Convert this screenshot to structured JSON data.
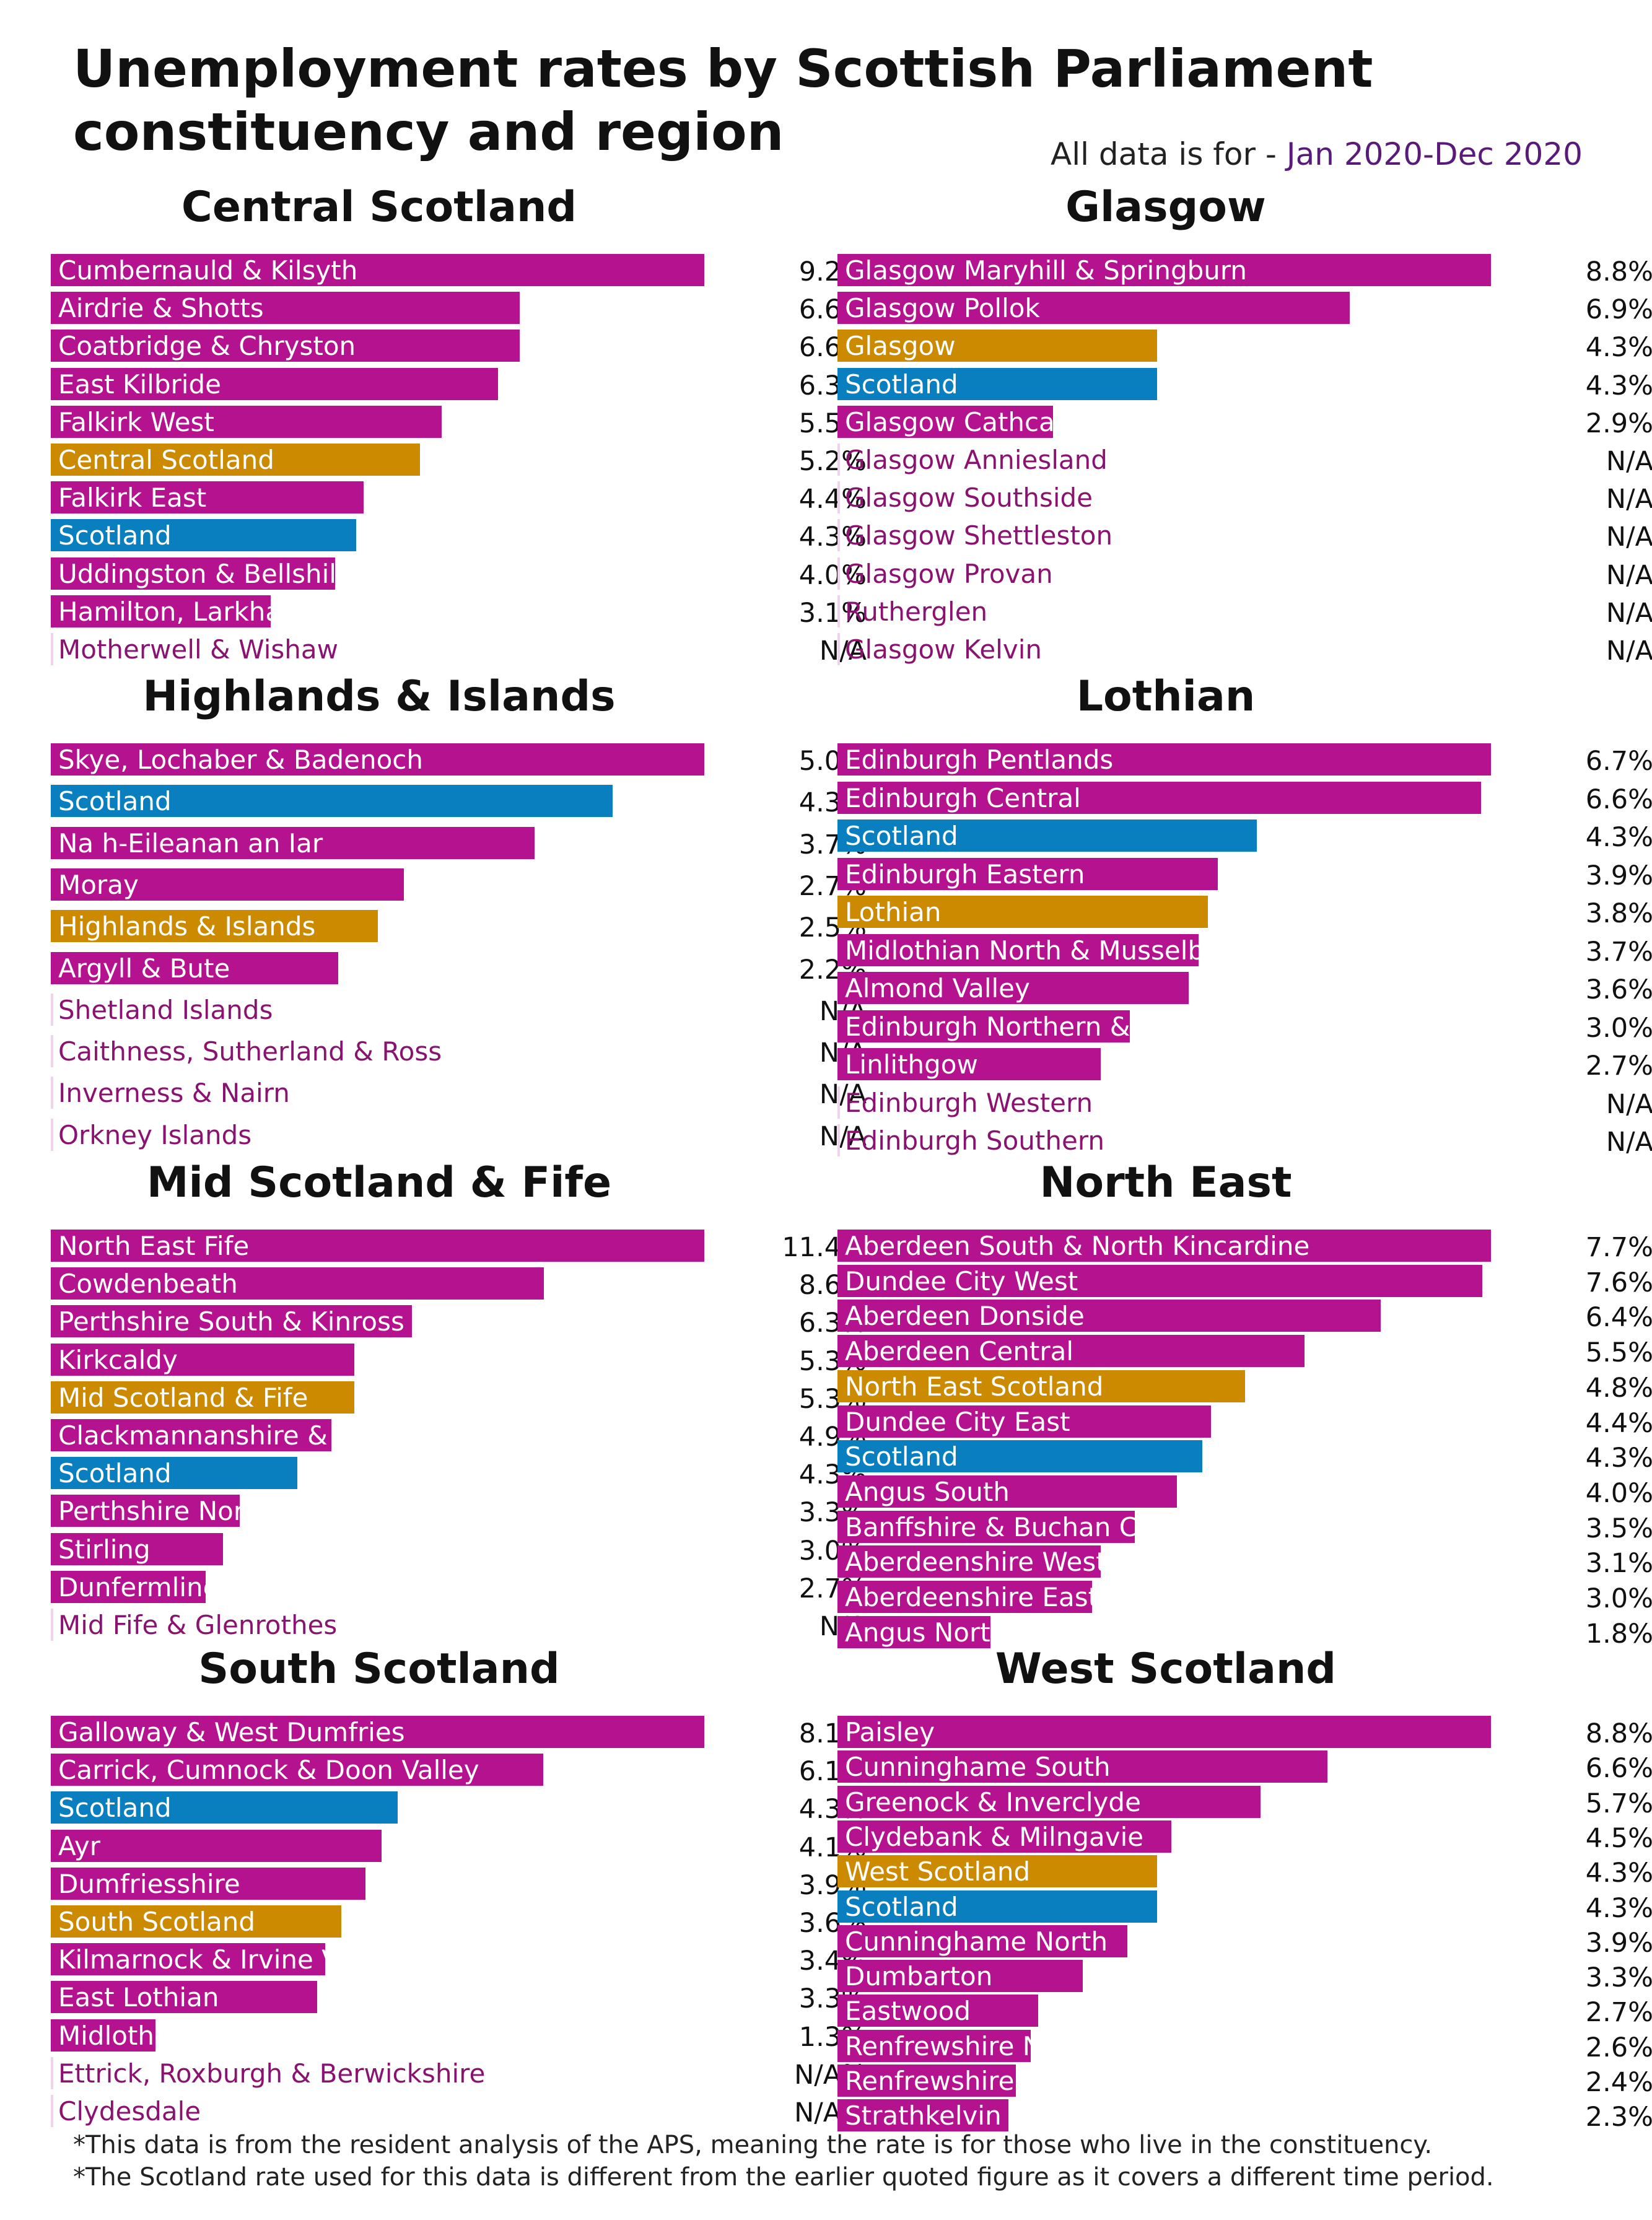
{
  "title_lines": [
    "Unemployment rates by Scottish Parliament",
    "constituency and region"
  ],
  "period_prefix": "All data is for - ",
  "period_value": "Jan 2020-Dec 2020",
  "colors": {
    "constituency": "#b5128f",
    "region": "#cc8a00",
    "scotland": "#0a7fc0",
    "label_light": "#ffffff",
    "label_dark": "#8a1270",
    "na_stub": "#f0d2ea"
  },
  "footnotes": [
    "*This data is from the resident analysis of the APS, meaning the rate is for those who live in the constituency.",
    "*The Scotland rate used for this data is different from the earlier quoted figure as it covers a different time period."
  ],
  "chart_data": [
    {
      "type": "bar",
      "title": "Central Scotland",
      "rows": [
        {
          "label": "Cumbernauld & Kilsyth",
          "value": 9.2,
          "display": "9.2%",
          "kind": "constituency"
        },
        {
          "label": "Airdrie & Shotts",
          "value": 6.6,
          "display": "6.6%",
          "kind": "constituency"
        },
        {
          "label": "Coatbridge & Chryston",
          "value": 6.6,
          "display": "6.6%",
          "kind": "constituency"
        },
        {
          "label": "East Kilbride",
          "value": 6.3,
          "display": "6.3%",
          "kind": "constituency"
        },
        {
          "label": "Falkirk West",
          "value": 5.5,
          "display": "5.5%",
          "kind": "constituency"
        },
        {
          "label": "Central Scotland",
          "value": 5.2,
          "display": "5.2%",
          "kind": "region"
        },
        {
          "label": "Falkirk East",
          "value": 4.4,
          "display": "4.4%",
          "kind": "constituency"
        },
        {
          "label": "Scotland",
          "value": 4.3,
          "display": "4.3%",
          "kind": "scotland"
        },
        {
          "label": "Uddingston & Bellshill",
          "value": 4.0,
          "display": "4.0%",
          "kind": "constituency"
        },
        {
          "label": "Hamilton, Larkhall & Stonehouse",
          "value": 3.1,
          "display": "3.1%",
          "kind": "constituency"
        },
        {
          "label": "Motherwell & Wishaw",
          "value": null,
          "display": "N/A",
          "kind": "constituency"
        }
      ]
    },
    {
      "type": "bar",
      "title": "Glasgow",
      "rows": [
        {
          "label": "Glasgow Maryhill & Springburn",
          "value": 8.8,
          "display": "8.8%",
          "kind": "constituency"
        },
        {
          "label": "Glasgow Pollok",
          "value": 6.9,
          "display": "6.9%",
          "kind": "constituency"
        },
        {
          "label": "Glasgow",
          "value": 4.3,
          "display": "4.3%",
          "kind": "region"
        },
        {
          "label": "Scotland",
          "value": 4.3,
          "display": "4.3%",
          "kind": "scotland"
        },
        {
          "label": "Glasgow Cathcart",
          "value": 2.9,
          "display": "2.9%",
          "kind": "constituency"
        },
        {
          "label": "Glasgow Anniesland",
          "value": null,
          "display": "N/A",
          "kind": "constituency"
        },
        {
          "label": "Glasgow Southside",
          "value": null,
          "display": "N/A",
          "kind": "constituency"
        },
        {
          "label": "Glasgow Shettleston",
          "value": null,
          "display": "N/A",
          "kind": "constituency"
        },
        {
          "label": "Glasgow Provan",
          "value": null,
          "display": "N/A",
          "kind": "constituency"
        },
        {
          "label": "Rutherglen",
          "value": null,
          "display": "N/A",
          "kind": "constituency"
        },
        {
          "label": "Glasgow Kelvin",
          "value": null,
          "display": "N/A",
          "kind": "constituency"
        }
      ]
    },
    {
      "type": "bar",
      "title": "Highlands & Islands",
      "rows": [
        {
          "label": "Skye, Lochaber & Badenoch",
          "value": 5.0,
          "display": "5.0%",
          "kind": "constituency"
        },
        {
          "label": "Scotland",
          "value": 4.3,
          "display": "4.3%",
          "kind": "scotland"
        },
        {
          "label": "Na h-Eileanan an Iar",
          "value": 3.7,
          "display": "3.7%",
          "kind": "constituency"
        },
        {
          "label": "Moray",
          "value": 2.7,
          "display": "2.7%",
          "kind": "constituency"
        },
        {
          "label": "Highlands & Islands",
          "value": 2.5,
          "display": "2.5%",
          "kind": "region"
        },
        {
          "label": "Argyll & Bute",
          "value": 2.2,
          "display": "2.2%",
          "kind": "constituency"
        },
        {
          "label": "Shetland Islands",
          "value": null,
          "display": "N/A",
          "kind": "constituency"
        },
        {
          "label": "Caithness, Sutherland & Ross",
          "value": null,
          "display": "N/A",
          "kind": "constituency"
        },
        {
          "label": "Inverness & Nairn",
          "value": null,
          "display": "N/A",
          "kind": "constituency"
        },
        {
          "label": "Orkney Islands",
          "value": null,
          "display": "N/A",
          "kind": "constituency"
        }
      ]
    },
    {
      "type": "bar",
      "title": "Lothian",
      "rows": [
        {
          "label": "Edinburgh Pentlands",
          "value": 6.7,
          "display": "6.7%",
          "kind": "constituency"
        },
        {
          "label": "Edinburgh Central",
          "value": 6.6,
          "display": "6.6%",
          "kind": "constituency"
        },
        {
          "label": "Scotland",
          "value": 4.3,
          "display": "4.3%",
          "kind": "scotland"
        },
        {
          "label": "Edinburgh Eastern",
          "value": 3.9,
          "display": "3.9%",
          "kind": "constituency"
        },
        {
          "label": "Lothian",
          "value": 3.8,
          "display": "3.8%",
          "kind": "region"
        },
        {
          "label": "Midlothian North & Musselburgh",
          "value": 3.7,
          "display": "3.7%",
          "kind": "constituency"
        },
        {
          "label": "Almond Valley",
          "value": 3.6,
          "display": "3.6%",
          "kind": "constituency"
        },
        {
          "label": "Edinburgh Northern & Leith",
          "value": 3.0,
          "display": "3.0%",
          "kind": "constituency"
        },
        {
          "label": "Linlithgow",
          "value": 2.7,
          "display": "2.7%",
          "kind": "constituency"
        },
        {
          "label": "Edinburgh Western",
          "value": null,
          "display": "N/A",
          "kind": "constituency"
        },
        {
          "label": "Edinburgh Southern",
          "value": null,
          "display": "N/A",
          "kind": "constituency"
        }
      ]
    },
    {
      "type": "bar",
      "title": "Mid Scotland & Fife",
      "rows": [
        {
          "label": "North East Fife",
          "value": 11.4,
          "display": "11.4%",
          "kind": "constituency"
        },
        {
          "label": "Cowdenbeath",
          "value": 8.6,
          "display": "8.6%",
          "kind": "constituency"
        },
        {
          "label": "Perthshire South & Kinross",
          "value": 6.3,
          "display": "6.3%",
          "kind": "constituency"
        },
        {
          "label": "Kirkcaldy",
          "value": 5.3,
          "display": "5.3%",
          "kind": "constituency"
        },
        {
          "label": "Mid Scotland & Fife",
          "value": 5.3,
          "display": "5.3%",
          "kind": "region"
        },
        {
          "label": "Clackmannanshire & Dunblane",
          "value": 4.9,
          "display": "4.9%",
          "kind": "constituency"
        },
        {
          "label": "Scotland",
          "value": 4.3,
          "display": "4.3%",
          "kind": "scotland"
        },
        {
          "label": "Perthshire North",
          "value": 3.3,
          "display": "3.3%",
          "kind": "constituency"
        },
        {
          "label": "Stirling",
          "value": 3.0,
          "display": "3.0%",
          "kind": "constituency"
        },
        {
          "label": "Dunfermline",
          "value": 2.7,
          "display": "2.7%",
          "kind": "constituency"
        },
        {
          "label": "Mid Fife & Glenrothes",
          "value": null,
          "display": "N/A",
          "kind": "constituency"
        }
      ]
    },
    {
      "type": "bar",
      "title": "North East",
      "rows": [
        {
          "label": "Aberdeen South & North Kincardine",
          "value": 7.7,
          "display": "7.7%",
          "kind": "constituency"
        },
        {
          "label": "Dundee City West",
          "value": 7.6,
          "display": "7.6%",
          "kind": "constituency"
        },
        {
          "label": "Aberdeen Donside",
          "value": 6.4,
          "display": "6.4%",
          "kind": "constituency"
        },
        {
          "label": "Aberdeen Central",
          "value": 5.5,
          "display": "5.5%",
          "kind": "constituency"
        },
        {
          "label": "North East Scotland",
          "value": 4.8,
          "display": "4.8%",
          "kind": "region"
        },
        {
          "label": "Dundee City East",
          "value": 4.4,
          "display": "4.4%",
          "kind": "constituency"
        },
        {
          "label": "Scotland",
          "value": 4.3,
          "display": "4.3%",
          "kind": "scotland"
        },
        {
          "label": "Angus South",
          "value": 4.0,
          "display": "4.0%",
          "kind": "constituency"
        },
        {
          "label": "Banffshire & Buchan Coast",
          "value": 3.5,
          "display": "3.5%",
          "kind": "constituency"
        },
        {
          "label": "Aberdeenshire West",
          "value": 3.1,
          "display": "3.1%",
          "kind": "constituency"
        },
        {
          "label": "Aberdeenshire East",
          "value": 3.0,
          "display": "3.0%",
          "kind": "constituency"
        },
        {
          "label": "Angus North & Mearns",
          "value": 1.8,
          "display": "1.8%",
          "kind": "constituency"
        }
      ]
    },
    {
      "type": "bar",
      "title": "South Scotland",
      "rows": [
        {
          "label": "Galloway & West Dumfries",
          "value": 8.1,
          "display": "8.1%",
          "kind": "constituency"
        },
        {
          "label": "Carrick, Cumnock & Doon Valley",
          "value": 6.1,
          "display": "6.1%",
          "kind": "constituency"
        },
        {
          "label": "Scotland",
          "value": 4.3,
          "display": "4.3%",
          "kind": "scotland"
        },
        {
          "label": "Ayr",
          "value": 4.1,
          "display": "4.1%",
          "kind": "constituency"
        },
        {
          "label": "Dumfriesshire",
          "value": 3.9,
          "display": "3.9%",
          "kind": "constituency"
        },
        {
          "label": "South Scotland",
          "value": 3.6,
          "display": "3.6%",
          "kind": "region"
        },
        {
          "label": "Kilmarnock & Irvine Valley",
          "value": 3.4,
          "display": "3.4%",
          "kind": "constituency"
        },
        {
          "label": "East Lothian",
          "value": 3.3,
          "display": "3.3%",
          "kind": "constituency"
        },
        {
          "label": "Midlothian South, Tweeddale & Lauderdale",
          "value": 1.3,
          "display": "1.3%",
          "kind": "constituency"
        },
        {
          "label": "Ettrick, Roxburgh & Berwickshire",
          "value": null,
          "display": "N/A%",
          "kind": "constituency"
        },
        {
          "label": "Clydesdale",
          "value": null,
          "display": "N/A%",
          "kind": "constituency"
        }
      ]
    },
    {
      "type": "bar",
      "title": "West Scotland",
      "rows": [
        {
          "label": "Paisley",
          "value": 8.8,
          "display": "8.8%",
          "kind": "constituency"
        },
        {
          "label": "Cunninghame South",
          "value": 6.6,
          "display": "6.6%",
          "kind": "constituency"
        },
        {
          "label": "Greenock & Inverclyde",
          "value": 5.7,
          "display": "5.7%",
          "kind": "constituency"
        },
        {
          "label": "Clydebank & Milngavie",
          "value": 4.5,
          "display": "4.5%",
          "kind": "constituency"
        },
        {
          "label": "West Scotland",
          "value": 4.3,
          "display": "4.3%",
          "kind": "region"
        },
        {
          "label": "Scotland",
          "value": 4.3,
          "display": "4.3%",
          "kind": "scotland"
        },
        {
          "label": "Cunninghame North",
          "value": 3.9,
          "display": "3.9%",
          "kind": "constituency"
        },
        {
          "label": "Dumbarton",
          "value": 3.3,
          "display": "3.3%",
          "kind": "constituency"
        },
        {
          "label": "Eastwood",
          "value": 2.7,
          "display": "2.7%",
          "kind": "constituency"
        },
        {
          "label": "Renfrewshire North & West",
          "value": 2.6,
          "display": "2.6%",
          "kind": "constituency"
        },
        {
          "label": "Renfrewshire South",
          "value": 2.4,
          "display": "2.4%",
          "kind": "constituency"
        },
        {
          "label": "Strathkelvin & Bearsden",
          "value": 2.3,
          "display": "2.3%",
          "kind": "constituency"
        }
      ]
    }
  ]
}
